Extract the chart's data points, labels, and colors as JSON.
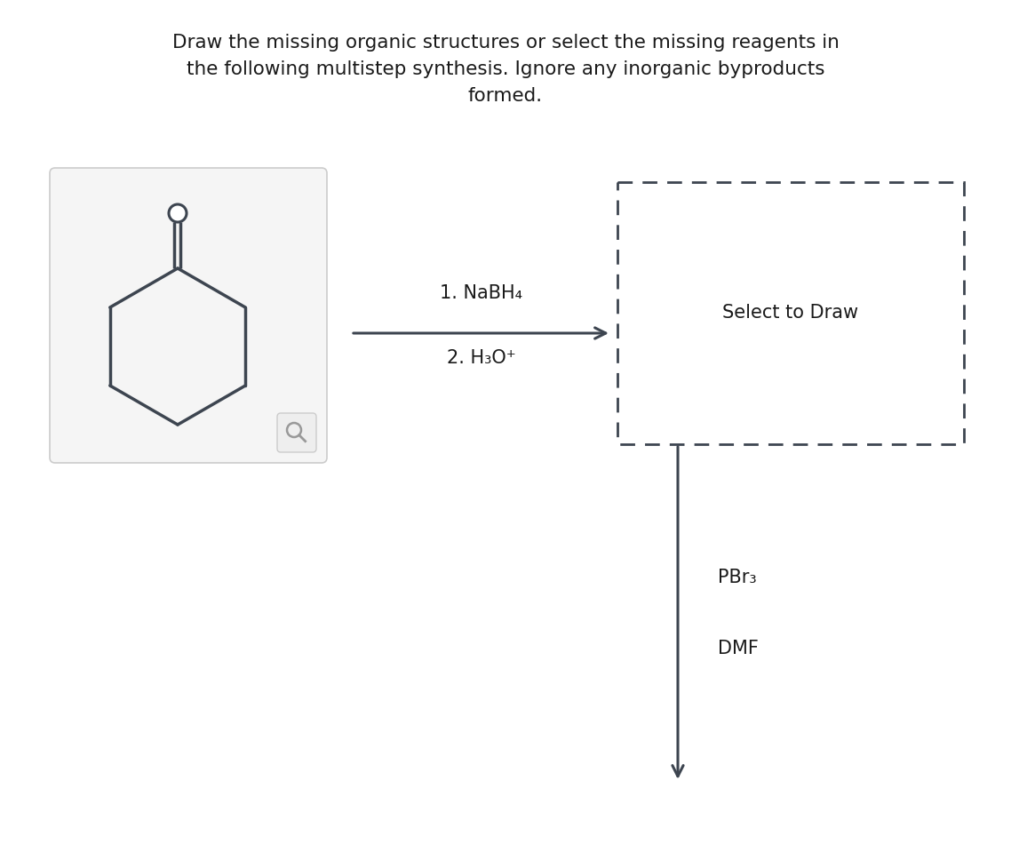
{
  "title_line1": "Draw the missing organic structures or select the missing reagents in",
  "title_line2": "the following multistep synthesis. Ignore any inorganic byproducts",
  "title_line3": "formed.",
  "title_fontsize": 15.5,
  "title_color": "#1a1a1a",
  "bg_color": "#ffffff",
  "reagent1_line1": "1. NaBH₄",
  "reagent1_line2": "2. H₃O⁺",
  "reagent2_line1": "PBr₃",
  "reagent2_line2": "DMF",
  "select_to_draw": "Select to Draw",
  "arrow_color": "#3d4550",
  "mol_color": "#3d4550",
  "dashed_box_color": "#3d4550",
  "zoom_icon_color": "#999999",
  "box_edge_color": "#cccccc",
  "box_face_color": "#f5f5f5"
}
